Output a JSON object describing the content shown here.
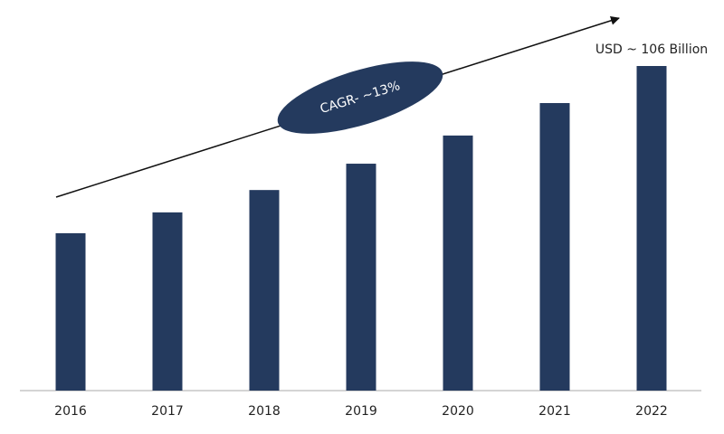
{
  "chart_data": {
    "type": "bar",
    "categories": [
      "2016",
      "2017",
      "2018",
      "2019",
      "2020",
      "2021",
      "2022"
    ],
    "values": [
      51.4,
      58.2,
      65.5,
      74.1,
      83.3,
      93.9,
      106
    ],
    "value_labels": [
      null,
      null,
      null,
      null,
      null,
      null,
      "USD ~ 106 Billion"
    ],
    "color": "#243a5e",
    "annotation": "CAGR- ~13%"
  }
}
